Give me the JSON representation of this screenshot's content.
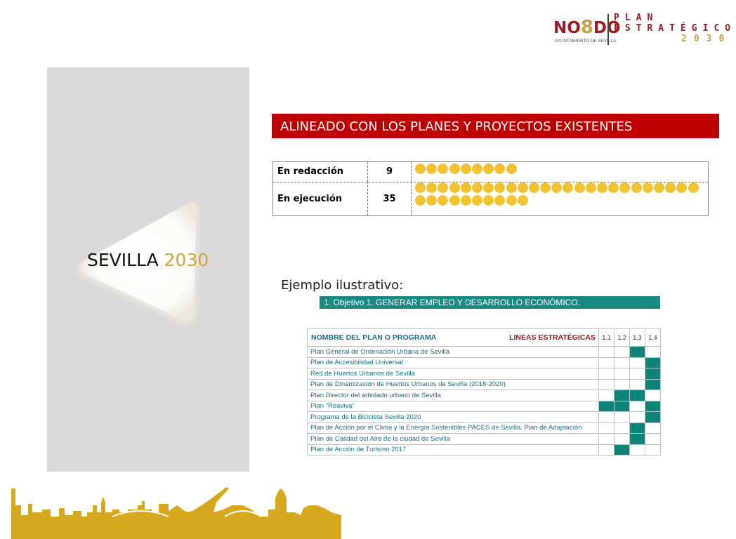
{
  "logo": {
    "nodo": "NO8DO",
    "nodo_left": "NO",
    "nodo_eight": "8",
    "nodo_right": "DO",
    "sub": "AYUNTAMIENTO DE SEVILLA",
    "plan_line1": "PLAN",
    "plan_line2": "ESTRATÉGICO",
    "plan_year": "2030"
  },
  "left_panel": {
    "title_word": "SEVILLA",
    "title_year": "2030"
  },
  "banner": {
    "text": "ALINEADO CON LOS PLANES Y PROYECTOS EXISTENTES"
  },
  "status": [
    {
      "label": "En redacción",
      "count": "9"
    },
    {
      "label": "En ejecución",
      "count": "35"
    }
  ],
  "example": {
    "title": "Ejemplo ilustrativo:",
    "objective": "1.   Objetivo 1. GENERAR EMPLEO Y DESARROLLO ECONÓMICO."
  },
  "plans_table": {
    "header_name": "NOMBRE DEL PLAN O PROGRAMA",
    "header_lines": "LINEAS ESTRATÉGICAS",
    "columns": [
      "1.1",
      "1.2",
      "1.3",
      "1.4"
    ],
    "rows": [
      {
        "name": "Plan General de Ordenación Urbana de Sevilla",
        "marks": [
          0,
          0,
          1,
          0
        ]
      },
      {
        "name": "Plan de Accesibilidad Universal",
        "marks": [
          0,
          0,
          0,
          1
        ]
      },
      {
        "name": "Red de Huertos Urbanos de Sevilla",
        "marks": [
          0,
          0,
          0,
          1
        ]
      },
      {
        "name": "Plan de Dinamización de Huertos Urbanos de Sevilla (2018-2020)",
        "marks": [
          0,
          0,
          0,
          1
        ]
      },
      {
        "name": "Plan Director del arbolado urbano de Sevilla",
        "marks": [
          0,
          1,
          1,
          0
        ]
      },
      {
        "name": "Plan \"Reaviva\"",
        "marks": [
          1,
          1,
          0,
          1
        ]
      },
      {
        "name": "Programa de la Bicicleta Sevilla 2020",
        "marks": [
          0,
          0,
          0,
          1
        ]
      },
      {
        "name": "Plan de Acción por el Clima y la Energía Sostenibles PACES de Sevilla. Plan de Adaptación",
        "marks": [
          0,
          0,
          1,
          0
        ]
      },
      {
        "name": "Plan de Calidad del Aire de la ciudad de Sevilla",
        "marks": [
          0,
          0,
          1,
          0
        ]
      },
      {
        "name": "Plan de Acción de Turismo 2017",
        "marks": [
          0,
          1,
          0,
          0
        ]
      }
    ]
  },
  "colors": {
    "banner": "#c00000",
    "objective": "#178a82",
    "mark": "#0e8378",
    "dot": "#f2c230",
    "accent_gold": "#d4a43a",
    "brand_red": "#9a1c22"
  }
}
